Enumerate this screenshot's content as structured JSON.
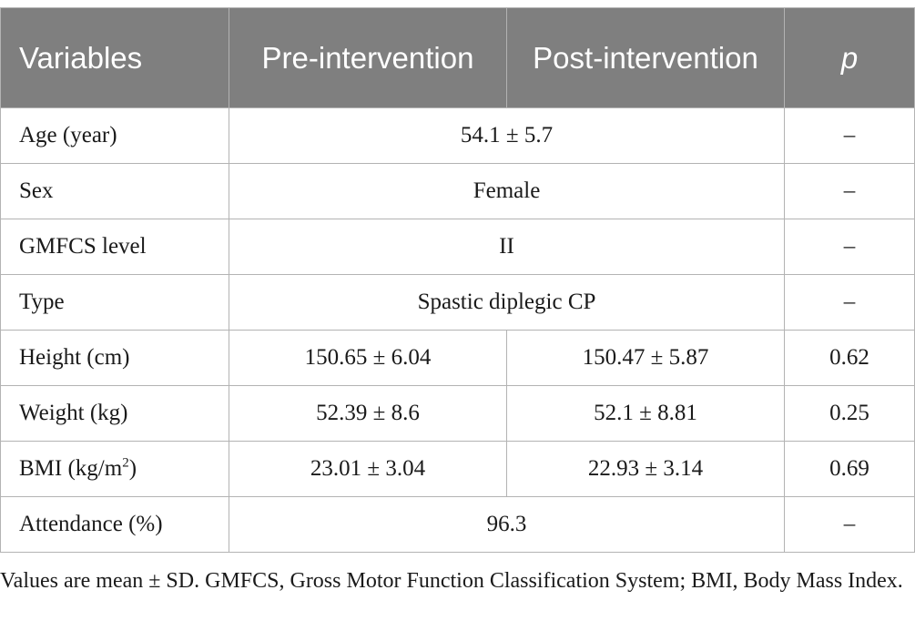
{
  "table": {
    "headers": [
      "Variables",
      "Pre-intervention",
      "Post-intervention",
      "p"
    ],
    "rows": [
      {
        "label": "Age (year)",
        "merged": "54.1 ± 5.7",
        "p": "–"
      },
      {
        "label": "Sex",
        "merged": "Female",
        "p": "–"
      },
      {
        "label": "GMFCS level",
        "merged": "II",
        "p": "–"
      },
      {
        "label": "Type",
        "merged": "Spastic diplegic CP",
        "p": "–"
      },
      {
        "label": "Height (cm)",
        "pre": "150.65 ± 6.04",
        "post": "150.47 ± 5.87",
        "p": "0.62"
      },
      {
        "label": "Weight (kg)",
        "pre": "52.39 ± 8.6",
        "post": "52.1 ± 8.81",
        "p": "0.25"
      },
      {
        "label": "BMI (kg/m",
        "label_sup": "2",
        "label_after": ")",
        "pre": "23.01 ± 3.04",
        "post": "22.93 ± 3.14",
        "p": "0.69"
      },
      {
        "label": "Attendance (%)",
        "merged": "96.3",
        "p": "–"
      }
    ]
  },
  "footnote": "Values are mean ± SD. GMFCS, Gross Motor Function Classification System; BMI, Body Mass Index."
}
